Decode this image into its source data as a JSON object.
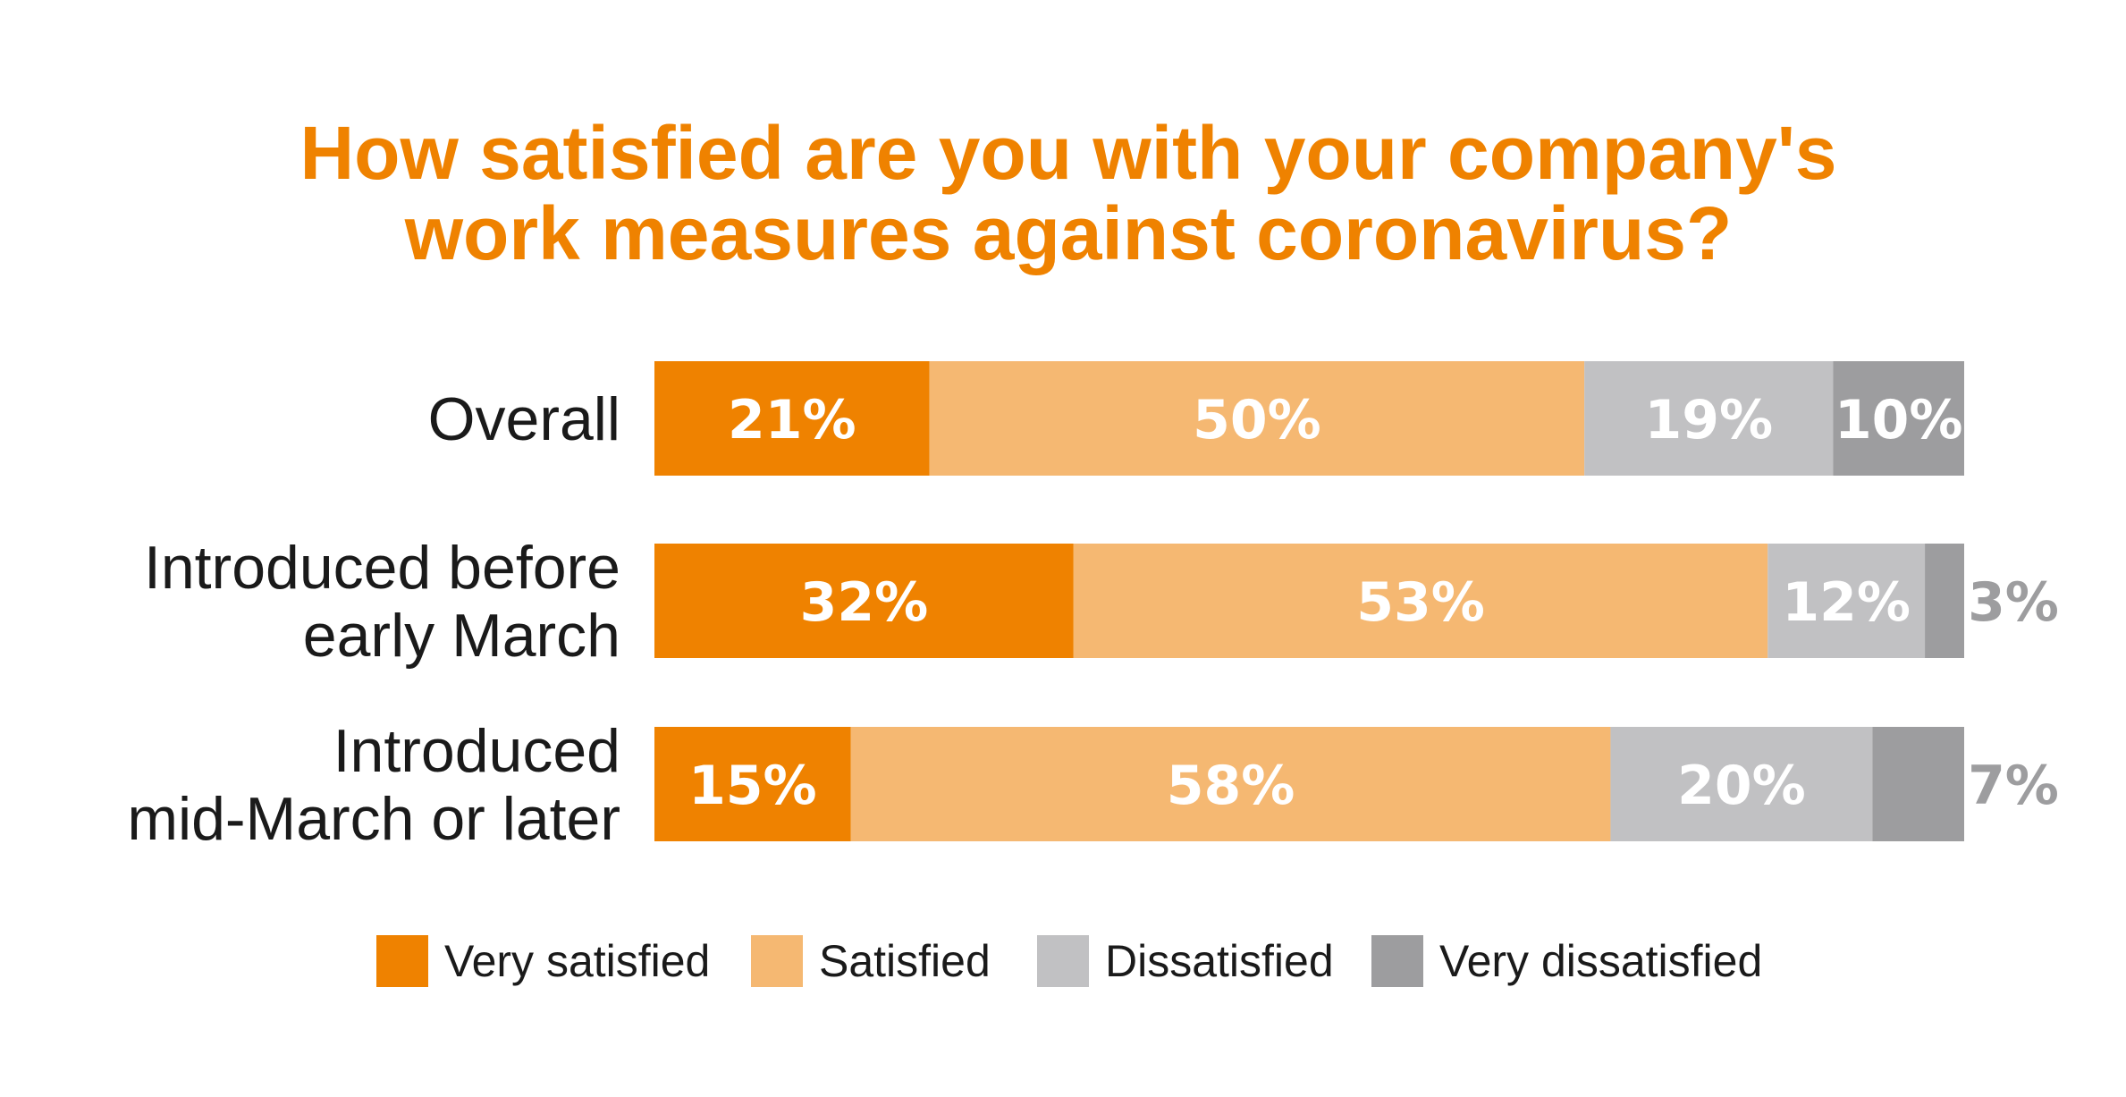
{
  "chart_data": {
    "type": "bar",
    "orientation": "horizontal",
    "stacked": true,
    "title": [
      "How satisfied are you with your company's",
      "work measures against coronavirus?"
    ],
    "categories": [
      [
        "Overall"
      ],
      [
        "Introduced before",
        "early March"
      ],
      [
        "Introduced",
        "mid-March or later"
      ]
    ],
    "series": [
      {
        "name": "Very satisfied",
        "color": "#ef8200",
        "values": [
          21,
          32,
          15
        ],
        "labels": [
          "21%",
          "32%",
          "15%"
        ]
      },
      {
        "name": "Satisfied",
        "color": "#f5b872",
        "values": [
          50,
          53,
          58
        ],
        "labels": [
          "50%",
          "53%",
          "58%"
        ]
      },
      {
        "name": "Dissatisfied",
        "color": "#c1c1c3",
        "values": [
          19,
          12,
          20
        ],
        "labels": [
          "19%",
          "12%",
          "20%"
        ]
      },
      {
        "name": "Very dissatisfied",
        "color": "#9d9d9f",
        "values": [
          10,
          3,
          7
        ],
        "labels": [
          "10%",
          "3%",
          "7%"
        ]
      }
    ],
    "xlim": [
      0,
      100
    ],
    "unit": "%",
    "legend_position": "bottom",
    "grid": false
  }
}
